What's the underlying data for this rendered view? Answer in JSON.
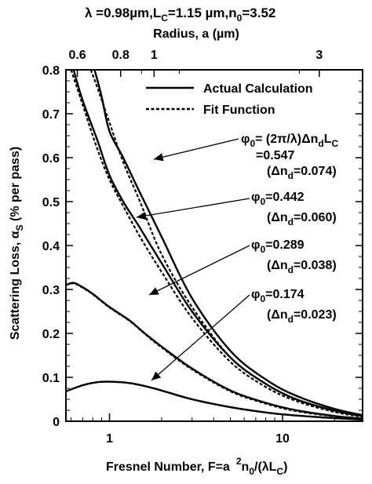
{
  "chart_data": {
    "type": "line",
    "title_line1": "λ =0.98µm,L",
    "title_line1_sub": "C",
    "title_line1_mid": "=1.15 µm,n",
    "title_line1_sub2": "0",
    "title_line1_end": "=3.52",
    "top_axis_label": "Radius, a (µm)",
    "ylabel": "Scattering Loss,  α",
    "ylabel_sub": "S",
    "ylabel_end": " (% per pass)",
    "xlabel_a": "Fresnel Number, F=a",
    "xlabel_sup": "2",
    "xlabel_b": "n",
    "xlabel_sub": "0",
    "xlabel_c": "/(λL",
    "xlabel_sub2": "C",
    "xlabel_d": ")",
    "x_scale": "log",
    "xlim": [
      0.56,
      29
    ],
    "ylim": [
      0,
      0.8
    ],
    "x_ticks": [
      {
        "v": 1,
        "label": "1"
      },
      {
        "v": 10,
        "label": "10"
      }
    ],
    "y_ticks": [
      "0",
      "0.1",
      "0.2",
      "0.3",
      "0.4",
      "0.5",
      "0.6",
      "0.7",
      "0.8"
    ],
    "top_ticks": [
      {
        "label": "0.6",
        "F": 0.652
      },
      {
        "label": "0.8",
        "F": 1.16
      },
      {
        "label": "1",
        "F": 1.81
      },
      {
        "label": "3",
        "F": 16.3
      }
    ],
    "legend": [
      {
        "label": "Actual Calculation",
        "style": "solid"
      },
      {
        "label": "Fit Function",
        "style": "dashed"
      }
    ],
    "series": [
      {
        "id": "phi0547",
        "actual": [
          [
            0.82,
            0.8
          ],
          [
            0.9,
            0.74
          ],
          [
            1.0,
            0.66
          ],
          [
            1.2,
            0.6
          ],
          [
            1.5,
            0.52
          ],
          [
            2,
            0.42
          ],
          [
            3,
            0.28
          ],
          [
            5,
            0.16
          ],
          [
            8,
            0.095
          ],
          [
            12,
            0.058
          ],
          [
            20,
            0.028
          ],
          [
            29,
            0.014
          ]
        ],
        "fit": [
          [
            0.78,
            0.8
          ],
          [
            0.85,
            0.76
          ],
          [
            1.0,
            0.68
          ],
          [
            1.2,
            0.59
          ],
          [
            1.5,
            0.5
          ],
          [
            2,
            0.38
          ],
          [
            3,
            0.26
          ],
          [
            5,
            0.145
          ],
          [
            8,
            0.085
          ],
          [
            12,
            0.05
          ],
          [
            20,
            0.024
          ],
          [
            29,
            0.012
          ]
        ]
      },
      {
        "id": "phi0442",
        "actual": [
          [
            0.62,
            0.8
          ],
          [
            0.7,
            0.73
          ],
          [
            0.85,
            0.64
          ],
          [
            1.0,
            0.56
          ],
          [
            1.2,
            0.5
          ],
          [
            1.5,
            0.44
          ],
          [
            2,
            0.36
          ],
          [
            3,
            0.25
          ],
          [
            5,
            0.145
          ],
          [
            8,
            0.085
          ],
          [
            12,
            0.05
          ],
          [
            20,
            0.024
          ],
          [
            29,
            0.012
          ]
        ],
        "fit": [
          [
            0.6,
            0.8
          ],
          [
            0.7,
            0.72
          ],
          [
            0.85,
            0.62
          ],
          [
            1.0,
            0.55
          ],
          [
            1.2,
            0.49
          ],
          [
            1.5,
            0.42
          ],
          [
            2,
            0.34
          ],
          [
            3,
            0.235
          ],
          [
            5,
            0.135
          ],
          [
            8,
            0.078
          ],
          [
            12,
            0.046
          ],
          [
            20,
            0.021
          ],
          [
            29,
            0.01
          ]
        ]
      },
      {
        "id": "phi0289",
        "actual": [
          [
            0.56,
            0.31
          ],
          [
            0.62,
            0.315
          ],
          [
            0.7,
            0.305
          ],
          [
            0.8,
            0.29
          ],
          [
            1.0,
            0.26
          ],
          [
            1.3,
            0.23
          ],
          [
            1.6,
            0.2
          ],
          [
            2,
            0.17
          ],
          [
            3,
            0.12
          ],
          [
            5,
            0.07
          ],
          [
            8,
            0.042
          ],
          [
            12,
            0.025
          ],
          [
            20,
            0.012
          ],
          [
            29,
            0.006
          ]
        ],
        "fit": [
          [
            0.56,
            0.31
          ],
          [
            0.62,
            0.314
          ],
          [
            0.7,
            0.304
          ],
          [
            0.8,
            0.289
          ],
          [
            1.0,
            0.259
          ],
          [
            1.3,
            0.229
          ],
          [
            1.6,
            0.199
          ],
          [
            2,
            0.168
          ],
          [
            3,
            0.118
          ],
          [
            5,
            0.068
          ],
          [
            8,
            0.04
          ],
          [
            12,
            0.023
          ],
          [
            20,
            0.011
          ],
          [
            29,
            0.005
          ]
        ]
      },
      {
        "id": "phi0174",
        "actual": [
          [
            0.56,
            0.068
          ],
          [
            0.7,
            0.082
          ],
          [
            0.85,
            0.089
          ],
          [
            1.0,
            0.09
          ],
          [
            1.3,
            0.087
          ],
          [
            1.6,
            0.08
          ],
          [
            2,
            0.07
          ],
          [
            3,
            0.05
          ],
          [
            5,
            0.032
          ],
          [
            8,
            0.02
          ],
          [
            12,
            0.013
          ],
          [
            20,
            0.007
          ],
          [
            29,
            0.004
          ]
        ],
        "fit": [
          [
            0.56,
            0.068
          ],
          [
            0.7,
            0.082
          ],
          [
            0.85,
            0.089
          ],
          [
            1.0,
            0.09
          ],
          [
            1.3,
            0.087
          ],
          [
            1.6,
            0.08
          ],
          [
            2,
            0.07
          ],
          [
            3,
            0.05
          ],
          [
            5,
            0.032
          ],
          [
            8,
            0.02
          ],
          [
            12,
            0.013
          ],
          [
            20,
            0.007
          ],
          [
            29,
            0.004
          ]
        ]
      }
    ],
    "annotations": [
      {
        "id": "a547",
        "lines": [
          "φ0= (2π/λ)Δn",
          "=0.547",
          "(Δn=0.074)"
        ]
      },
      {
        "id": "a442",
        "lines": [
          "φ0=0.442",
          "(Δn=0.060)"
        ]
      },
      {
        "id": "a289",
        "lines": [
          "φ0=0.289",
          "(Δn=0.038)"
        ]
      },
      {
        "id": "a174",
        "lines": [
          "φ0=0.174",
          "(Δn=0.023)"
        ]
      }
    ],
    "labels": {
      "phi": "φ",
      "phi_sub": "0",
      "eq": "=",
      "formula_a": " (2π/λ)Δn",
      "formula_sub_d": "d",
      "formula_L": "L",
      "formula_sub_C": "C",
      "v547": "=0.547",
      "v442": "=0.442",
      "v289": "=0.289",
      "v174": "=0.174",
      "open": "(Δn",
      "d": "d",
      "n074": "=0.074)",
      "n060": "=0.060)",
      "n038": "=0.038)",
      "n023": "=0.023)"
    }
  }
}
